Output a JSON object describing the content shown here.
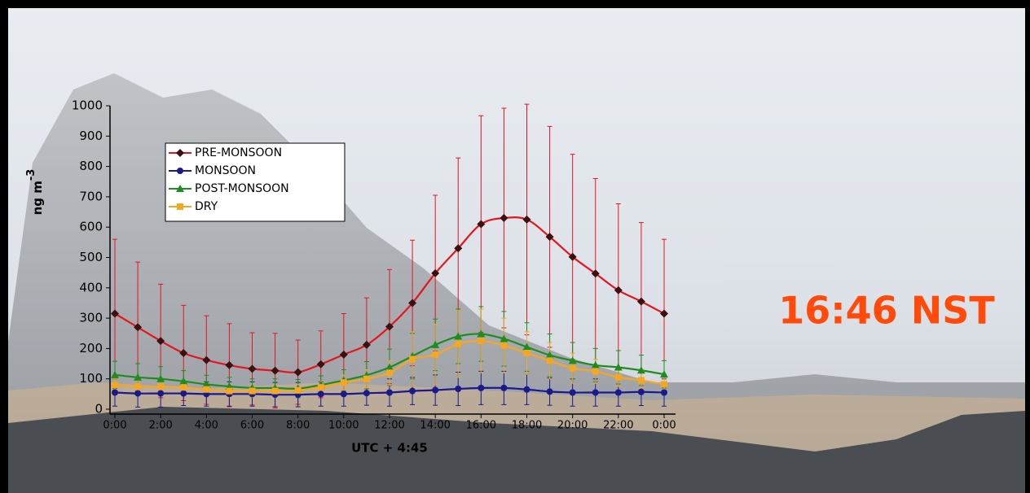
{
  "chart_data": {
    "type": "line",
    "ylabel": "ng m",
    "ylabel_superscript": "-3",
    "xlabel": "UTC + 4:45",
    "annotation": "16:46 NST",
    "annotation_color": "#ff4a0a",
    "categories": [
      "0:00",
      null,
      "2:00",
      null,
      "4:00",
      null,
      "6:00",
      null,
      "8:00",
      null,
      "10:00",
      null,
      "12:00",
      null,
      "14:00",
      null,
      "16:00",
      null,
      "18:00",
      null,
      "20:00",
      null,
      "22:00",
      null,
      "0:00"
    ],
    "ylim": [
      0,
      1000
    ],
    "yticks": [
      0,
      100,
      200,
      300,
      400,
      500,
      600,
      700,
      800,
      900,
      1000
    ],
    "grid": false,
    "legend": "upper left",
    "series": [
      {
        "name": "PRE-MONSOON",
        "color": "#e8141c",
        "marker": "diamond",
        "marker_color": "#3a1010",
        "values": [
          315,
          270,
          225,
          185,
          162,
          145,
          133,
          127,
          122,
          148,
          180,
          212,
          272,
          350,
          448,
          530,
          610,
          630,
          625,
          568,
          502,
          447,
          392,
          355,
          315
        ],
        "errors": [
          245,
          215,
          187,
          157,
          146,
          137,
          119,
          123,
          106,
          110,
          135,
          155,
          188,
          207,
          257,
          298,
          357,
          362,
          380,
          364,
          338,
          313,
          285,
          260,
          245
        ]
      },
      {
        "name": "MONSOON",
        "color": "#1a1a8c",
        "marker": "circle",
        "marker_color": "#1a1a8c",
        "values": [
          55,
          52,
          52,
          52,
          50,
          50,
          50,
          48,
          48,
          50,
          50,
          53,
          55,
          60,
          63,
          67,
          70,
          70,
          65,
          58,
          55,
          55,
          55,
          57,
          55
        ],
        "errors": [
          45,
          45,
          45,
          40,
          40,
          40,
          40,
          40,
          40,
          40,
          40,
          40,
          45,
          45,
          50,
          55,
          55,
          55,
          50,
          45,
          45,
          45,
          45,
          45,
          45
        ]
      },
      {
        "name": "POST-MONSOON",
        "color": "#1f8c1f",
        "marker": "triangle",
        "marker_color": "#1f8c1f",
        "values": [
          113,
          105,
          100,
          92,
          82,
          75,
          70,
          70,
          68,
          80,
          95,
          112,
          138,
          175,
          212,
          240,
          248,
          232,
          205,
          178,
          160,
          145,
          138,
          128,
          115
        ],
        "errors": [
          45,
          45,
          40,
          35,
          30,
          30,
          30,
          30,
          30,
          30,
          35,
          45,
          60,
          75,
          85,
          90,
          90,
          90,
          80,
          70,
          60,
          55,
          55,
          50,
          45
        ]
      },
      {
        "name": "DRY",
        "color": "#f5a623",
        "marker": "square",
        "marker_color": "#f5a623",
        "values": [
          80,
          75,
          75,
          72,
          65,
          60,
          60,
          60,
          62,
          72,
          88,
          100,
          120,
          165,
          180,
          215,
          225,
          210,
          185,
          160,
          135,
          125,
          105,
          95,
          82
        ],
        "errors": [
          20,
          20,
          20,
          20,
          20,
          20,
          20,
          20,
          20,
          20,
          25,
          30,
          40,
          90,
          100,
          110,
          105,
          90,
          70,
          60,
          50,
          40,
          30,
          25,
          20
        ]
      }
    ]
  }
}
